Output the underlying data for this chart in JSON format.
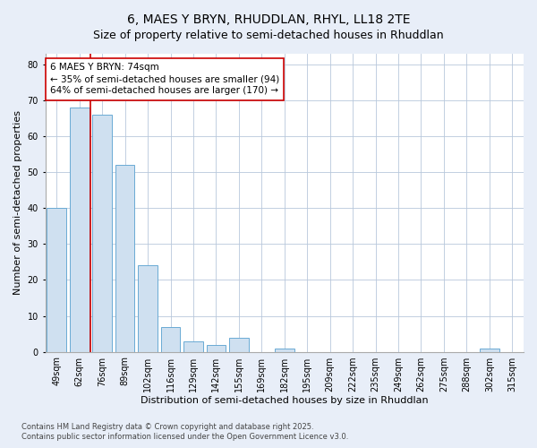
{
  "title": "6, MAES Y BRYN, RHUDDLAN, RHYL, LL18 2TE",
  "subtitle": "Size of property relative to semi-detached houses in Rhuddlan",
  "xlabel": "Distribution of semi-detached houses by size in Rhuddlan",
  "ylabel": "Number of semi-detached properties",
  "categories": [
    "49sqm",
    "62sqm",
    "76sqm",
    "89sqm",
    "102sqm",
    "116sqm",
    "129sqm",
    "142sqm",
    "155sqm",
    "169sqm",
    "182sqm",
    "195sqm",
    "209sqm",
    "222sqm",
    "235sqm",
    "249sqm",
    "262sqm",
    "275sqm",
    "288sqm",
    "302sqm",
    "315sqm"
  ],
  "values": [
    40,
    68,
    66,
    52,
    24,
    7,
    3,
    2,
    4,
    0,
    1,
    0,
    0,
    0,
    0,
    0,
    0,
    0,
    0,
    1,
    0
  ],
  "bar_color": "#cfe0f0",
  "bar_edge_color": "#6aaad4",
  "vline_color": "#cc0000",
  "vline_x": 1.5,
  "annotation_text": "6 MAES Y BRYN: 74sqm\n← 35% of semi-detached houses are smaller (94)\n64% of semi-detached houses are larger (170) →",
  "annotation_box_color": "white",
  "annotation_box_edge": "#cc0000",
  "ylim": [
    0,
    83
  ],
  "yticks": [
    0,
    10,
    20,
    30,
    40,
    50,
    60,
    70,
    80
  ],
  "footer1": "Contains HM Land Registry data © Crown copyright and database right 2025.",
  "footer2": "Contains public sector information licensed under the Open Government Licence v3.0.",
  "bg_color": "#e8eef8",
  "plot_bg_color": "#ffffff",
  "grid_color": "#b8c8dc",
  "title_fontsize": 10,
  "label_fontsize": 8,
  "tick_fontsize": 7,
  "annotation_fontsize": 7.5,
  "footer_fontsize": 6
}
